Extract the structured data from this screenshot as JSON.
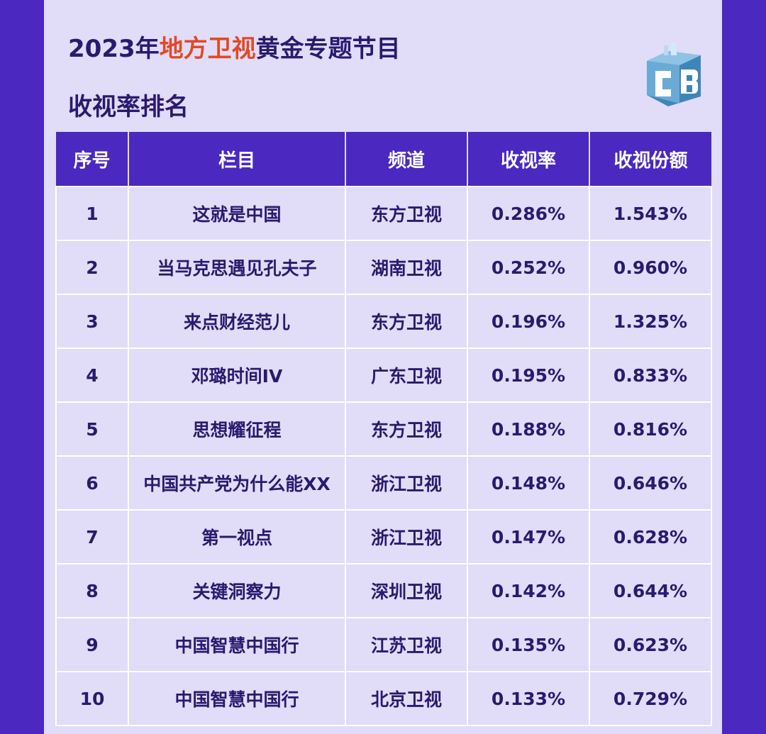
{
  "header": {
    "title_prefix": "2023年",
    "title_highlight": "地方卫视",
    "title_suffix": "黄金专题节目",
    "subtitle": "收视率排名",
    "logo_icon": "cb-logo-icon",
    "colors": {
      "background": "#4b28c0",
      "card": "#e1dcf7",
      "title": "#2a1a6e",
      "highlight": "#e04a26",
      "header_row": "#4b28c0"
    }
  },
  "table": {
    "columns": [
      "序号",
      "栏目",
      "频道",
      "收视率",
      "收视份额"
    ],
    "rows": [
      [
        "1",
        "这就是中国",
        "东方卫视",
        "0.286%",
        "1.543%"
      ],
      [
        "2",
        "当马克思遇见孔夫子",
        "湖南卫视",
        "0.252%",
        "0.960%"
      ],
      [
        "3",
        "来点财经范儿",
        "东方卫视",
        "0.196%",
        "1.325%"
      ],
      [
        "4",
        "邓璐时间IV",
        "广东卫视",
        "0.195%",
        "0.833%"
      ],
      [
        "5",
        "思想耀征程",
        "东方卫视",
        "0.188%",
        "0.816%"
      ],
      [
        "6",
        "中国共产党为什么能XX",
        "浙江卫视",
        "0.148%",
        "0.646%"
      ],
      [
        "7",
        "第一视点",
        "浙江卫视",
        "0.147%",
        "0.628%"
      ],
      [
        "8",
        "关键洞察力",
        "深圳卫视",
        "0.142%",
        "0.644%"
      ],
      [
        "9",
        "中国智慧中国行",
        "江苏卫视",
        "0.135%",
        "0.623%"
      ],
      [
        "10",
        "中国智慧中国行",
        "北京卫视",
        "0.133%",
        "0.729%"
      ]
    ]
  }
}
